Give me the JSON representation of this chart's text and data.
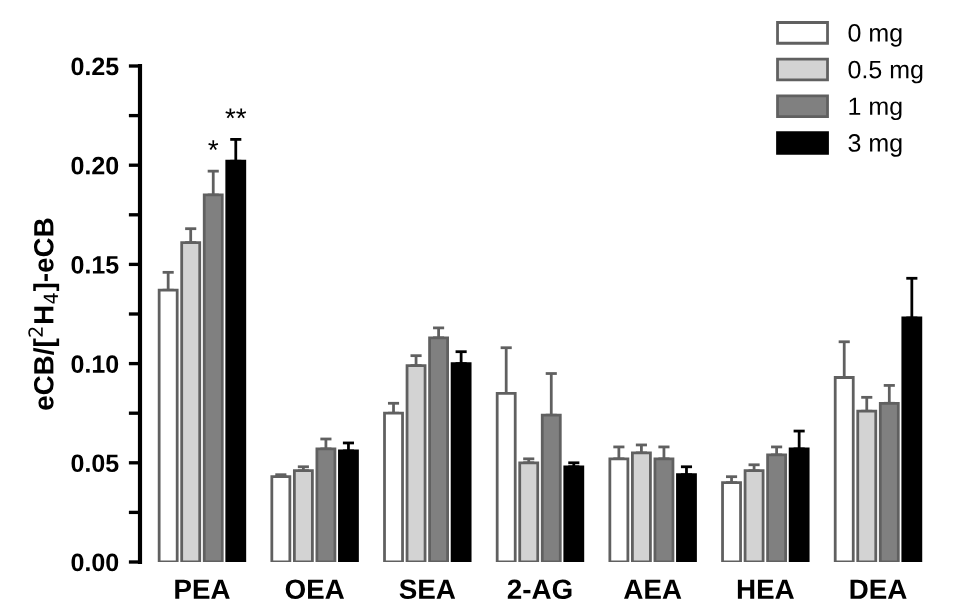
{
  "chart_data": {
    "type": "bar",
    "ylabel": "eCB/[$^{2}$H$_{4}$]-eCB",
    "categories": [
      "PEA",
      "OEA",
      "SEA",
      "2-AG",
      "AEA",
      "HEA",
      "DEA"
    ],
    "series": [
      {
        "name": "0 mg",
        "color": "#ffffff",
        "values": [
          0.137,
          0.043,
          0.075,
          0.085,
          0.052,
          0.04,
          0.093
        ],
        "errors": [
          0.009,
          0.001,
          0.005,
          0.023,
          0.006,
          0.003,
          0.018
        ]
      },
      {
        "name": "0.5 mg",
        "color": "#d3d3d3",
        "values": [
          0.161,
          0.046,
          0.099,
          0.05,
          0.055,
          0.046,
          0.076
        ],
        "errors": [
          0.007,
          0.002,
          0.005,
          0.002,
          0.004,
          0.003,
          0.007
        ]
      },
      {
        "name": "1 mg",
        "color": "#808080",
        "values": [
          0.185,
          0.057,
          0.113,
          0.074,
          0.052,
          0.054,
          0.08
        ],
        "errors": [
          0.012,
          0.005,
          0.005,
          0.021,
          0.006,
          0.004,
          0.009
        ]
      },
      {
        "name": "3 mg",
        "color": "#000000",
        "values": [
          0.202,
          0.056,
          0.1,
          0.048,
          0.044,
          0.057,
          0.123
        ],
        "errors": [
          0.011,
          0.004,
          0.006,
          0.002,
          0.004,
          0.009,
          0.02
        ]
      }
    ],
    "ylim": [
      0,
      0.25
    ],
    "yticks": [
      {
        "value": 0,
        "label": "0.00"
      },
      {
        "value": 0.025,
        "label": null
      },
      {
        "value": 0.05,
        "label": "0.05"
      },
      {
        "value": 0.075,
        "label": null
      },
      {
        "value": 0.1,
        "label": "0.10"
      },
      {
        "value": 0.125,
        "label": null
      },
      {
        "value": 0.15,
        "label": "0.15"
      },
      {
        "value": 0.175,
        "label": null
      },
      {
        "value": 0.2,
        "label": "0.20"
      },
      {
        "value": 0.225,
        "label": null
      },
      {
        "value": 0.25,
        "label": "0.25"
      }
    ],
    "annotations": [
      "*",
      "**"
    ],
    "legend": "top right",
    "grid": false
  }
}
